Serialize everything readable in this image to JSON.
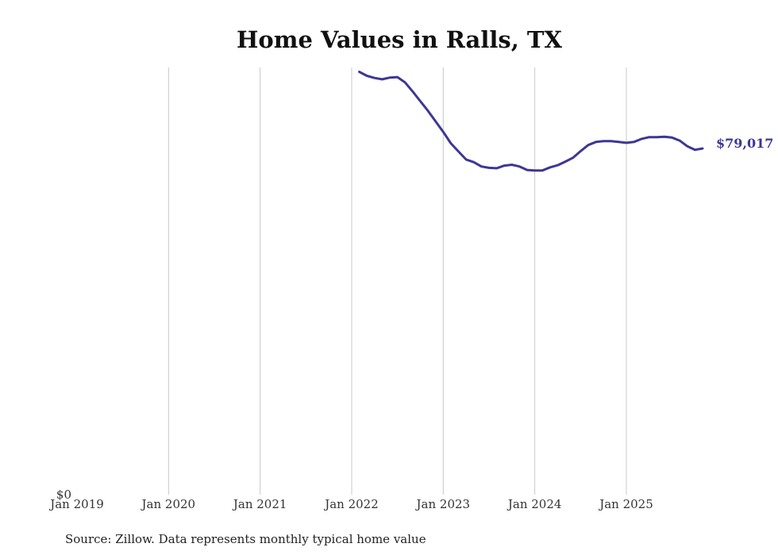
{
  "chart_data": {
    "type": "line",
    "title": "Home Values in Ralls, TX",
    "xlabel": "",
    "ylabel": "",
    "ylim": [
      0,
      97500
    ],
    "y_tick_labels": [
      {
        "value": 0,
        "label": "$0"
      }
    ],
    "x_ticks": [
      {
        "t": 2019.0,
        "label": "Jan 2019"
      },
      {
        "t": 2020.0,
        "label": "Jan 2020"
      },
      {
        "t": 2021.0,
        "label": "Jan 2021"
      },
      {
        "t": 2022.0,
        "label": "Jan 2022"
      },
      {
        "t": 2023.0,
        "label": "Jan 2023"
      },
      {
        "t": 2024.0,
        "label": "Jan 2024"
      },
      {
        "t": 2025.0,
        "label": "Jan 2025"
      }
    ],
    "xlim": [
      2019.0,
      2025.85
    ],
    "grid": "vertical",
    "series": [
      {
        "name": "Typical home value",
        "color": "#3d3794",
        "end_label": "$79,017",
        "x": [
          2022.083,
          2022.167,
          2022.25,
          2022.333,
          2022.417,
          2022.5,
          2022.583,
          2022.667,
          2022.75,
          2022.833,
          2022.917,
          2023.0,
          2023.083,
          2023.167,
          2023.25,
          2023.333,
          2023.417,
          2023.5,
          2023.583,
          2023.667,
          2023.75,
          2023.833,
          2023.917,
          2024.0,
          2024.083,
          2024.167,
          2024.25,
          2024.333,
          2024.417,
          2024.5,
          2024.583,
          2024.667,
          2024.75,
          2024.833,
          2024.917,
          2025.0,
          2025.083,
          2025.167,
          2025.25,
          2025.333,
          2025.417,
          2025.5,
          2025.583,
          2025.667,
          2025.75,
          2025.833
        ],
        "y": [
          96500,
          95600,
          95100,
          94800,
          95200,
          95300,
          94100,
          92000,
          89800,
          87600,
          85200,
          82800,
          80200,
          78300,
          76500,
          75900,
          74900,
          74600,
          74500,
          75100,
          75300,
          74900,
          74100,
          74000,
          74000,
          74700,
          75200,
          76000,
          76900,
          78400,
          79800,
          80500,
          80700,
          80700,
          80500,
          80300,
          80500,
          81200,
          81600,
          81600,
          81700,
          81500,
          80800,
          79500,
          78700,
          79017
        ]
      }
    ]
  },
  "source_text": "Source: Zillow. Data represents monthly typical home value"
}
